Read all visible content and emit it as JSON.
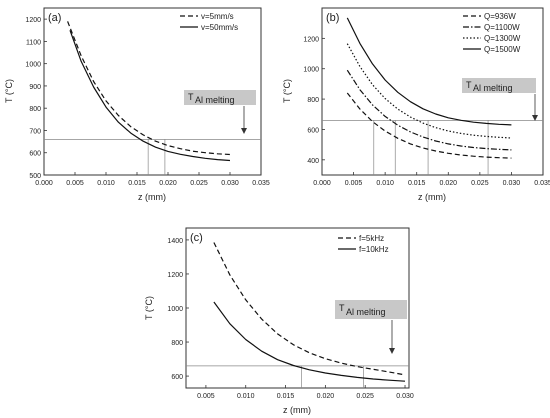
{
  "chart_data": [
    {
      "id": "a",
      "type": "line",
      "panel_label": "(a)",
      "xlabel": "z (mm)",
      "ylabel": "T (°C)",
      "xlim": [
        0.0,
        0.035
      ],
      "ylim": [
        500,
        1250
      ],
      "xticks": [
        "0.000",
        "0.005",
        "0.010",
        "0.015",
        "0.020",
        "0.025",
        "0.030",
        "0.035"
      ],
      "xtick_values": [
        0.0,
        0.005,
        0.01,
        0.015,
        0.02,
        0.025,
        0.03,
        0.035
      ],
      "yticks": [
        "500",
        "600",
        "700",
        "800",
        "900",
        "1000",
        "1100",
        "1200"
      ],
      "ytick_values": [
        500,
        600,
        700,
        800,
        900,
        1000,
        1100,
        1200
      ],
      "legend_position": "top-right",
      "melting_line": 660,
      "annotation": {
        "main": "T",
        "sub": "Al melting"
      },
      "series": [
        {
          "name": "v=5mm/s",
          "dash": "dash",
          "x": [
            0.0038,
            0.006,
            0.008,
            0.01,
            0.012,
            0.014,
            0.016,
            0.018,
            0.02,
            0.022,
            0.024,
            0.026,
            0.028,
            0.03
          ],
          "y": [
            1190,
            1035,
            920,
            833,
            767,
            717,
            680,
            652,
            632,
            618,
            607,
            600,
            595,
            592
          ]
        },
        {
          "name": "v=50mm/s",
          "dash": "solid",
          "x": [
            0.0042,
            0.006,
            0.008,
            0.01,
            0.012,
            0.014,
            0.016,
            0.018,
            0.02,
            0.022,
            0.024,
            0.026,
            0.028,
            0.03
          ],
          "y": [
            1150,
            1010,
            895,
            805,
            737,
            688,
            652,
            625,
            606,
            593,
            583,
            575,
            569,
            565
          ]
        }
      ],
      "drop_lines_x": [
        0.0168,
        0.0195
      ]
    },
    {
      "id": "b",
      "type": "line",
      "panel_label": "(b)",
      "xlabel": "z (mm)",
      "ylabel": "T (°C)",
      "xlim": [
        0.0,
        0.035
      ],
      "ylim": [
        300,
        1400
      ],
      "xticks": [
        "0.000",
        "0.005",
        "0.010",
        "0.015",
        "0.020",
        "0.025",
        "0.030",
        "0.035"
      ],
      "xtick_values": [
        0.0,
        0.005,
        0.01,
        0.015,
        0.02,
        0.025,
        0.03,
        0.035
      ],
      "yticks": [
        "400",
        "600",
        "800",
        "1000",
        "1200"
      ],
      "ytick_values": [
        400,
        600,
        800,
        1000,
        1200
      ],
      "legend_position": "top-right",
      "melting_line": 660,
      "annotation": {
        "main": "T",
        "sub": "Al melting"
      },
      "series": [
        {
          "name": "Q=936W",
          "dash": "dash",
          "x": [
            0.004,
            0.006,
            0.008,
            0.01,
            0.012,
            0.014,
            0.016,
            0.018,
            0.02,
            0.022,
            0.024,
            0.026,
            0.028,
            0.03
          ],
          "y": [
            840,
            735,
            652,
            590,
            542,
            505,
            478,
            458,
            443,
            432,
            424,
            418,
            414,
            411
          ]
        },
        {
          "name": "Q=1100W",
          "dash": "dashdot",
          "x": [
            0.004,
            0.006,
            0.008,
            0.01,
            0.012,
            0.014,
            0.016,
            0.018,
            0.02,
            0.022,
            0.024,
            0.026,
            0.028,
            0.03
          ],
          "y": [
            990,
            862,
            762,
            686,
            628,
            584,
            550,
            524,
            505,
            491,
            481,
            474,
            469,
            465
          ]
        },
        {
          "name": "Q=1300W",
          "dash": "dot",
          "x": [
            0.004,
            0.006,
            0.008,
            0.01,
            0.012,
            0.014,
            0.016,
            0.018,
            0.02,
            0.022,
            0.024,
            0.026,
            0.028,
            0.03
          ],
          "y": [
            1165,
            1015,
            895,
            804,
            734,
            682,
            642,
            612,
            590,
            574,
            562,
            554,
            548,
            544
          ]
        },
        {
          "name": "Q=1500W",
          "dash": "solid",
          "x": [
            0.004,
            0.006,
            0.008,
            0.01,
            0.012,
            0.014,
            0.016,
            0.018,
            0.02,
            0.022,
            0.024,
            0.026,
            0.028,
            0.03
          ],
          "y": [
            1335,
            1167,
            1032,
            926,
            845,
            783,
            736,
            702,
            677,
            660,
            648,
            640,
            634,
            630
          ]
        }
      ],
      "drop_lines_x": [
        0.0082,
        0.0116,
        0.0168,
        0.0263
      ]
    },
    {
      "id": "c",
      "type": "line",
      "panel_label": "(c)",
      "xlabel": "z (mm)",
      "ylabel": "T (°C)",
      "xlim": [
        0.0025,
        0.0305
      ],
      "ylim": [
        530,
        1470
      ],
      "xticks": [
        "0.005",
        "0.010",
        "0.015",
        "0.020",
        "0.025",
        "0.030"
      ],
      "xtick_values": [
        0.005,
        0.01,
        0.015,
        0.02,
        0.025,
        0.03
      ],
      "yticks": [
        "600",
        "800",
        "1000",
        "1200",
        "1400"
      ],
      "ytick_values": [
        600,
        800,
        1000,
        1200,
        1400
      ],
      "legend_position": "top-right",
      "melting_line": 660,
      "annotation": {
        "main": "T",
        "sub": "Al melting"
      },
      "series": [
        {
          "name": "f=5kHz",
          "dash": "dash",
          "x": [
            0.006,
            0.008,
            0.01,
            0.012,
            0.014,
            0.016,
            0.018,
            0.02,
            0.022,
            0.024,
            0.026,
            0.028,
            0.03
          ],
          "y": [
            1385,
            1195,
            1048,
            935,
            848,
            784,
            737,
            702,
            676,
            656,
            640,
            624,
            607
          ]
        },
        {
          "name": "f=10kHz",
          "dash": "solid",
          "x": [
            0.006,
            0.008,
            0.01,
            0.012,
            0.014,
            0.016,
            0.018,
            0.02,
            0.022,
            0.024,
            0.026,
            0.028,
            0.03
          ],
          "y": [
            1035,
            908,
            815,
            746,
            696,
            662,
            637,
            618,
            604,
            592,
            583,
            576,
            570
          ]
        }
      ],
      "drop_lines_x": [
        0.017,
        0.0248
      ]
    }
  ]
}
